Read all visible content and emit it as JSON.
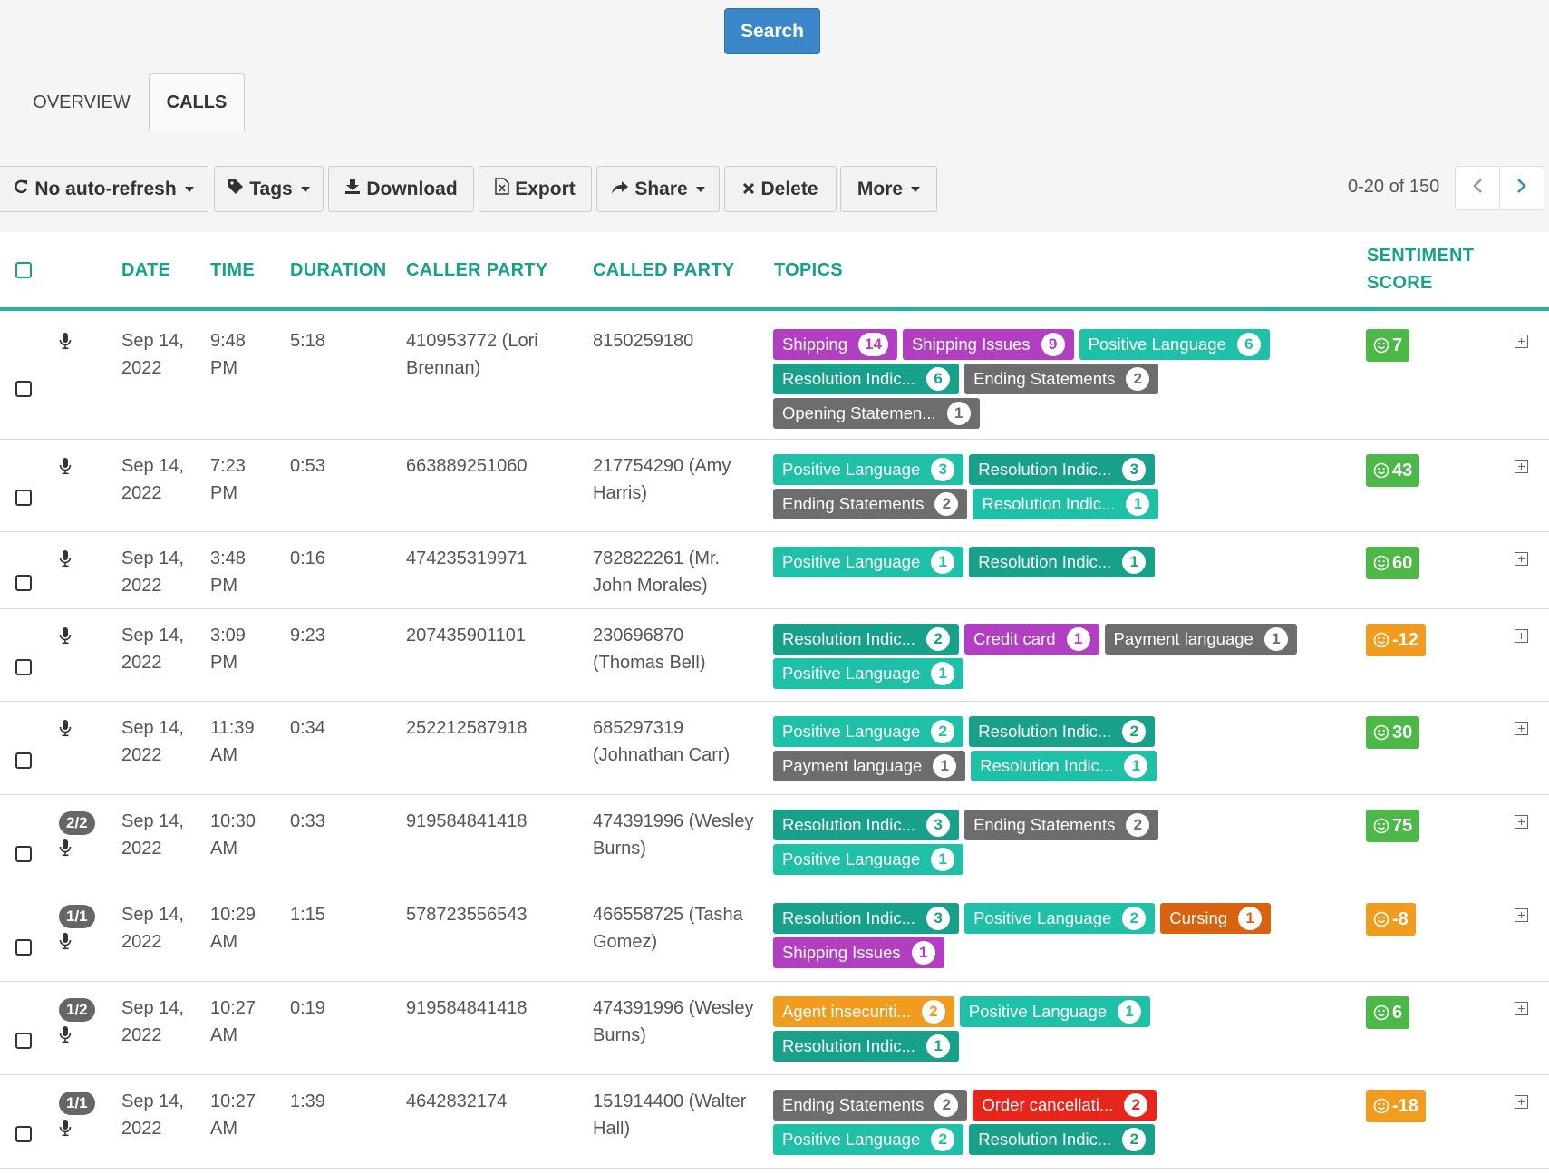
{
  "search_button": "Search",
  "tabs": [
    "OVERVIEW",
    "CALLS"
  ],
  "toolbar": {
    "auto_refresh": "No auto-refresh",
    "tags": "Tags",
    "download": "Download",
    "export": "Export",
    "share": "Share",
    "delete": "Delete",
    "more": "More"
  },
  "pager": {
    "range": "0-20 of 150"
  },
  "columns": {
    "date": "DATE",
    "time": "TIME",
    "duration": "DURATION",
    "caller": "CALLER PARTY",
    "called": "CALLED PARTY",
    "topics": "TOPICS",
    "sentiment_1": "SENTIMENT",
    "sentiment_2": "SCORE"
  },
  "colors": {
    "teal": "#17a08a",
    "teal_light": "#1ec1a7",
    "gray": "#6d6d6d",
    "purple": "#b23fc2",
    "orange": "#f29c1f",
    "dark_orange": "#d9620f",
    "red": "#e8251b",
    "green": "#4cb848",
    "blue": "#3a87ca"
  },
  "rows": [
    {
      "date1": "Sep 14,",
      "date2": "2022",
      "time1": "9:48",
      "time2": "PM",
      "duration": "5:18",
      "caller1": "410953772 (Lori",
      "caller2": "Brennan)",
      "called1": "8150259180",
      "called2": "",
      "badge": "",
      "sentiment": "7",
      "sentiment_color": "green",
      "topics": [
        {
          "label": "Shipping",
          "count": "14",
          "color": "purple"
        },
        {
          "label": "Shipping Issues",
          "count": "9",
          "color": "purple"
        },
        {
          "label": "Positive Language",
          "count": "6",
          "color": "teal_light"
        },
        {
          "label": "Resolution Indic...",
          "count": "6",
          "color": "teal"
        },
        {
          "label": "Ending Statements",
          "count": "2",
          "color": "gray"
        },
        {
          "label": "Opening Statemen...",
          "count": "1",
          "color": "gray"
        }
      ]
    },
    {
      "date1": "Sep 14,",
      "date2": "2022",
      "time1": "7:23",
      "time2": "PM",
      "duration": "0:53",
      "caller1": "663889251060",
      "caller2": "",
      "called1": "217754290 (Amy",
      "called2": "Harris)",
      "badge": "",
      "sentiment": "43",
      "sentiment_color": "green",
      "topics": [
        {
          "label": "Positive Language",
          "count": "3",
          "color": "teal_light"
        },
        {
          "label": "Resolution Indic...",
          "count": "3",
          "color": "teal"
        },
        {
          "label": "Ending Statements",
          "count": "2",
          "color": "gray"
        },
        {
          "label": "Resolution Indic...",
          "count": "1",
          "color": "teal_light"
        }
      ]
    },
    {
      "date1": "Sep 14,",
      "date2": "2022",
      "time1": "3:48",
      "time2": "PM",
      "duration": "0:16",
      "caller1": "474235319971",
      "caller2": "",
      "called1": "782822261 (Mr.",
      "called2": "John Morales)",
      "badge": "",
      "sentiment": "60",
      "sentiment_color": "green",
      "topics": [
        {
          "label": "Positive Language",
          "count": "1",
          "color": "teal_light"
        },
        {
          "label": "Resolution Indic...",
          "count": "1",
          "color": "teal"
        }
      ]
    },
    {
      "date1": "Sep 14,",
      "date2": "2022",
      "time1": "3:09",
      "time2": "PM",
      "duration": "9:23",
      "caller1": "207435901101",
      "caller2": "",
      "called1": "230696870",
      "called2": "(Thomas Bell)",
      "badge": "",
      "sentiment": "-12",
      "sentiment_color": "orange",
      "topics": [
        {
          "label": "Resolution Indic...",
          "count": "2",
          "color": "teal"
        },
        {
          "label": "Credit card",
          "count": "1",
          "color": "purple"
        },
        {
          "label": "Payment language",
          "count": "1",
          "color": "gray"
        },
        {
          "label": "Positive Language",
          "count": "1",
          "color": "teal_light"
        }
      ]
    },
    {
      "date1": "Sep 14,",
      "date2": "2022",
      "time1": "11:39",
      "time2": "AM",
      "duration": "0:34",
      "caller1": "252212587918",
      "caller2": "",
      "called1": "685297319",
      "called2": "(Johnathan Carr)",
      "badge": "",
      "sentiment": "30",
      "sentiment_color": "green",
      "topics": [
        {
          "label": "Positive Language",
          "count": "2",
          "color": "teal_light"
        },
        {
          "label": "Resolution Indic...",
          "count": "2",
          "color": "teal"
        },
        {
          "label": "Payment language",
          "count": "1",
          "color": "gray"
        },
        {
          "label": "Resolution Indic...",
          "count": "1",
          "color": "teal_light"
        }
      ]
    },
    {
      "date1": "Sep 14,",
      "date2": "2022",
      "time1": "10:30",
      "time2": "AM",
      "duration": "0:33",
      "caller1": "919584841418",
      "caller2": "",
      "called1": "474391996 (Wesley",
      "called2": "Burns)",
      "badge": "2/2",
      "sentiment": "75",
      "sentiment_color": "green",
      "topics": [
        {
          "label": "Resolution Indic...",
          "count": "3",
          "color": "teal"
        },
        {
          "label": "Ending Statements",
          "count": "2",
          "color": "gray"
        },
        {
          "label": "Positive Language",
          "count": "1",
          "color": "teal_light"
        }
      ]
    },
    {
      "date1": "Sep 14,",
      "date2": "2022",
      "time1": "10:29",
      "time2": "AM",
      "duration": "1:15",
      "caller1": "578723556543",
      "caller2": "",
      "called1": "466558725 (Tasha",
      "called2": "Gomez)",
      "badge": "1/1",
      "sentiment": "-8",
      "sentiment_color": "orange",
      "topics": [
        {
          "label": "Resolution Indic...",
          "count": "3",
          "color": "teal"
        },
        {
          "label": "Positive Language",
          "count": "2",
          "color": "teal_light"
        },
        {
          "label": "Cursing",
          "count": "1",
          "color": "dark_orange"
        },
        {
          "label": "Shipping Issues",
          "count": "1",
          "color": "purple"
        }
      ]
    },
    {
      "date1": "Sep 14,",
      "date2": "2022",
      "time1": "10:27",
      "time2": "AM",
      "duration": "0:19",
      "caller1": "919584841418",
      "caller2": "",
      "called1": "474391996 (Wesley",
      "called2": "Burns)",
      "badge": "1/2",
      "sentiment": "6",
      "sentiment_color": "green",
      "topics": [
        {
          "label": "Agent insecuriti...",
          "count": "2",
          "color": "orange"
        },
        {
          "label": "Positive Language",
          "count": "1",
          "color": "teal_light"
        },
        {
          "label": "Resolution Indic...",
          "count": "1",
          "color": "teal"
        }
      ]
    },
    {
      "date1": "Sep 14,",
      "date2": "2022",
      "time1": "10:27",
      "time2": "AM",
      "duration": "1:39",
      "caller1": "4642832174",
      "caller2": "",
      "called1": "151914400 (Walter",
      "called2": "Hall)",
      "badge": "1/1",
      "sentiment": "-18",
      "sentiment_color": "orange",
      "topics": [
        {
          "label": "Ending Statements",
          "count": "2",
          "color": "gray"
        },
        {
          "label": "Order cancellati...",
          "count": "2",
          "color": "red"
        },
        {
          "label": "Positive Language",
          "count": "2",
          "color": "teal_light"
        },
        {
          "label": "Resolution Indic...",
          "count": "2",
          "color": "teal"
        }
      ]
    }
  ]
}
